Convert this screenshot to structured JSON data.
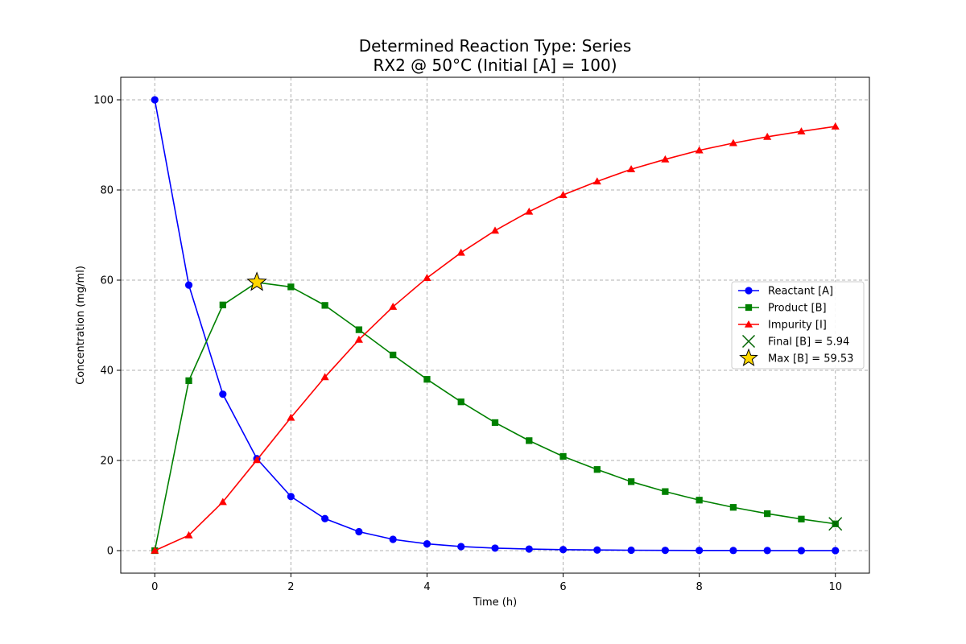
{
  "chart_data": {
    "type": "line",
    "title": [
      "Determined Reaction Type: Series",
      "RX2 @ 50°C (Initial [A] = 100)"
    ],
    "xlabel": "Time (h)",
    "ylabel": "Concentration (mg/ml)",
    "xlim": [
      -0.5,
      10.5
    ],
    "ylim": [
      -5,
      105
    ],
    "xticks": [
      0,
      2,
      4,
      6,
      8,
      10
    ],
    "yticks": [
      0,
      20,
      40,
      60,
      80,
      100
    ],
    "grid": true,
    "legend_position": "center-right",
    "x": [
      0,
      0.5,
      1,
      1.5,
      2,
      2.5,
      3,
      3.5,
      4,
      4.5,
      5,
      5.5,
      6,
      6.5,
      7,
      7.5,
      8,
      8.5,
      9,
      9.5,
      10
    ],
    "series": [
      {
        "name": "Reactant [A]",
        "color": "#0000ff",
        "marker": "circle",
        "values": [
          100,
          58.9,
          34.7,
          20.4,
          12.0,
          7.1,
          4.2,
          2.5,
          1.5,
          0.9,
          0.55,
          0.35,
          0.22,
          0.14,
          0.09,
          0.06,
          0.04,
          0.03,
          0.02,
          0.01,
          0.01
        ]
      },
      {
        "name": "Product [B]",
        "color": "#008000",
        "marker": "square",
        "values": [
          0,
          37.7,
          54.5,
          59.5,
          58.5,
          54.4,
          49.0,
          43.4,
          38.0,
          33.0,
          28.4,
          24.4,
          20.9,
          18.0,
          15.3,
          13.1,
          11.2,
          9.6,
          8.2,
          7.0,
          5.94
        ]
      },
      {
        "name": "Impurity [I]",
        "color": "#ff0000",
        "marker": "triangle",
        "values": [
          0,
          3.4,
          10.8,
          20.1,
          29.5,
          38.5,
          46.8,
          54.1,
          60.5,
          66.1,
          71.0,
          75.2,
          78.9,
          81.9,
          84.6,
          86.8,
          88.8,
          90.4,
          91.8,
          93.0,
          94.1
        ]
      }
    ],
    "annotations": [
      {
        "name": "Final [B] = 5.94",
        "x": 10,
        "y": 5.94,
        "marker": "x",
        "color": "#006400"
      },
      {
        "name": "Max [B] = 59.53",
        "x": 1.5,
        "y": 59.53,
        "marker": "star",
        "color": "#ffd700"
      }
    ]
  }
}
